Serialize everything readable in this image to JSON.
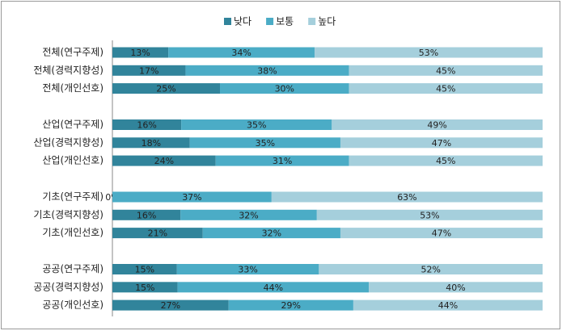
{
  "chart_data": {
    "type": "stacked-bar-horizontal",
    "categories": [
      "전체(연구주제)",
      "전체(경력지향성)",
      "전체(개인선호)",
      "산업(연구주제)",
      "산업(경력지향성)",
      "산업(개인선호)",
      "기초(연구주제)",
      "기초(경력지향성)",
      "기초(개인선호)",
      "공공(연구주제)",
      "공공(경력지향성)",
      "공공(개인선호)"
    ],
    "series": [
      {
        "name": "낮다",
        "color": "#31849b",
        "values": [
          13,
          17,
          25,
          16,
          18,
          24,
          0,
          16,
          21,
          15,
          15,
          27
        ],
        "value_labels": [
          "13%",
          "17%",
          "25%",
          "16%",
          "18%",
          "24%",
          "0%",
          "16%",
          "21%",
          "15%",
          "15%",
          "27%"
        ]
      },
      {
        "name": "보통",
        "color": "#4bacc6",
        "values": [
          34,
          38,
          30,
          35,
          35,
          31,
          37,
          32,
          32,
          33,
          44,
          29
        ],
        "value_labels": [
          "34%",
          "38%",
          "30%",
          "35%",
          "35%",
          "31%",
          "37%",
          "32%",
          "32%",
          "33%",
          "44%",
          "29%"
        ]
      },
      {
        "name": "높다",
        "color": "#a5cfdc",
        "values": [
          53,
          45,
          45,
          49,
          47,
          45,
          63,
          53,
          47,
          52,
          40,
          44
        ],
        "value_labels": [
          "53%",
          "45%",
          "45%",
          "49%",
          "47%",
          "45%",
          "63%",
          "53%",
          "47%",
          "52%",
          "40%",
          "44%"
        ]
      }
    ],
    "legend": "top"
  }
}
